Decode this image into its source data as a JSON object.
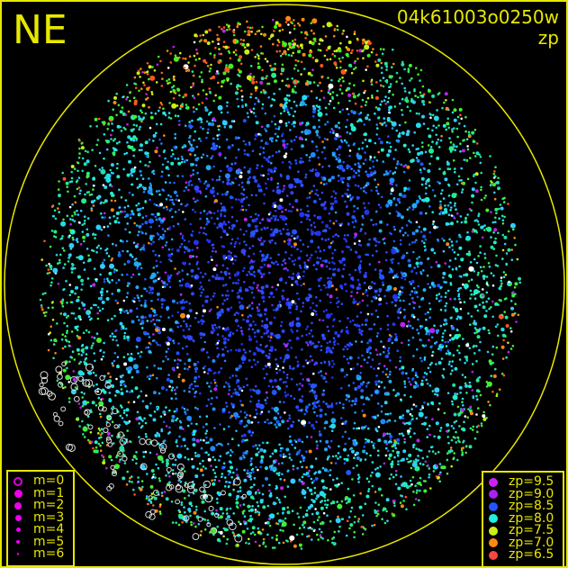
{
  "header": {
    "direction": "NE",
    "frame_id": "04k61003o0250w",
    "quantity": "zp"
  },
  "colors": {
    "frame": "#e8e800",
    "background": "#000000"
  },
  "magnitude_legend": [
    {
      "label": "m=0",
      "style": "ring"
    },
    {
      "label": "m=1"
    },
    {
      "label": "m=2"
    },
    {
      "label": "m=3"
    },
    {
      "label": "m=4"
    },
    {
      "label": "m=5"
    },
    {
      "label": "m=6"
    }
  ],
  "zp_legend": [
    {
      "label": "zp=9.5",
      "color": "#cc22ee"
    },
    {
      "label": "zp=9.0",
      "color": "#aa22ee"
    },
    {
      "label": "zp=8.5",
      "color": "#2255ff"
    },
    {
      "label": "zp=8.0",
      "color": "#22eedd"
    },
    {
      "label": "zp=7.5",
      "color": "#ccee11"
    },
    {
      "label": "zp=7.0",
      "color": "#ff8811"
    },
    {
      "label": "zp=6.5",
      "color": "#ff4444"
    }
  ],
  "chart_data": {
    "type": "scatter",
    "projection": "all-sky circular",
    "color_encodes": "zp",
    "size_encodes": "magnitude",
    "color_scale": [
      "zp=6.5",
      "zp=7.0",
      "zp=7.5",
      "zp=8.0",
      "zp=8.5",
      "zp=9.0",
      "zp=9.5"
    ],
    "distribution": "zp about 8.5 (blue) near center, 8.0 (cyan) mid-field, 7.5-7.0 (green/orange) near horizon; white rings for unmeasured stars at lower-left"
  }
}
